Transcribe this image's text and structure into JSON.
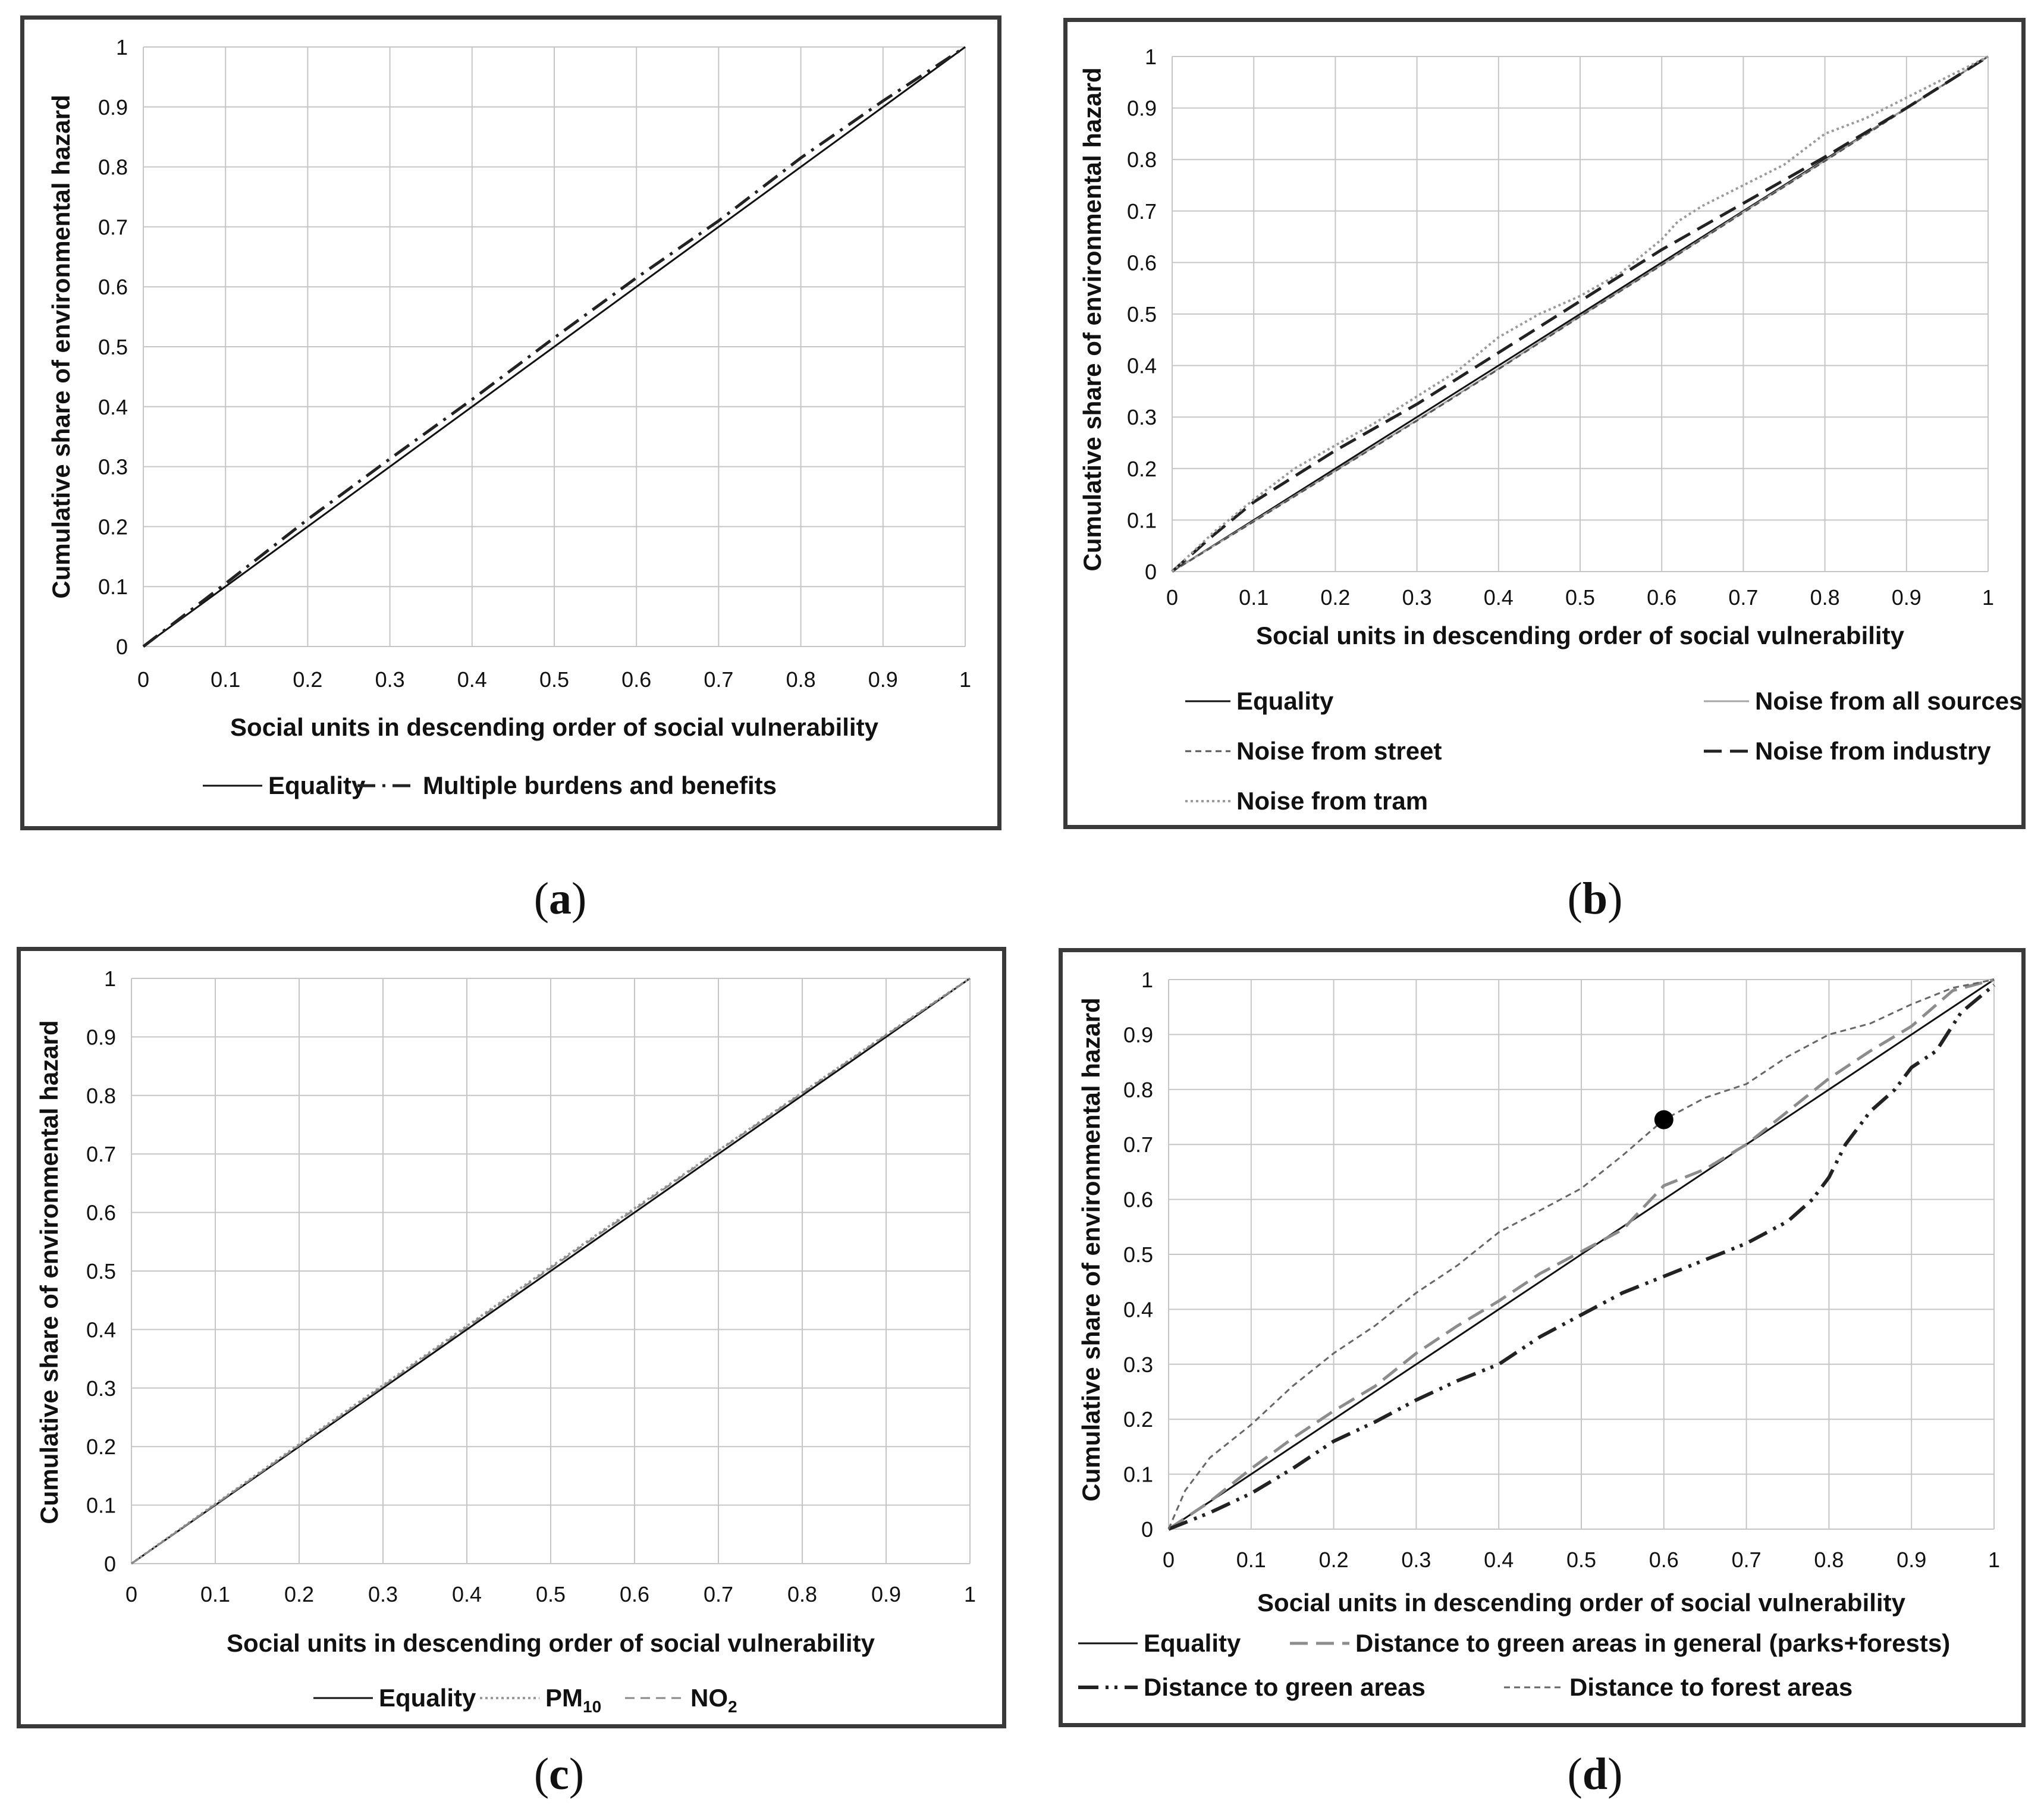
{
  "labels": {
    "a": "a",
    "b": "b",
    "c": "c",
    "d": "d"
  },
  "chart_data": [
    {
      "id": "a",
      "type": "line",
      "xlabel": "Social units in descending order of social vulnerability",
      "ylabel": "Cumulative share of environmental hazard",
      "xlim": [
        0,
        1
      ],
      "ylim": [
        0,
        1
      ],
      "xticks": [
        "0",
        "0.1",
        "0.2",
        "0.3",
        "0.4",
        "0.5",
        "0.6",
        "0.7",
        "0.8",
        "0.9",
        "1"
      ],
      "yticks": [
        "0",
        "0.1",
        "0.2",
        "0.3",
        "0.4",
        "0.5",
        "0.6",
        "0.7",
        "0.8",
        "0.9",
        "1"
      ],
      "grid": true,
      "legend_position": "bottom",
      "series": [
        {
          "name": "Equality",
          "color": "#111111",
          "dash": "solid",
          "x": [
            0,
            1
          ],
          "y": [
            0,
            1
          ]
        },
        {
          "name": "Multiple burdens and benefits",
          "color": "#222222",
          "dash": "dashdot",
          "x": [
            0,
            0.1,
            0.2,
            0.3,
            0.4,
            0.5,
            0.6,
            0.7,
            0.8,
            0.9,
            1
          ],
          "y": [
            0,
            0.105,
            0.212,
            0.313,
            0.412,
            0.515,
            0.615,
            0.71,
            0.815,
            0.91,
            1
          ]
        }
      ]
    },
    {
      "id": "b",
      "type": "line",
      "xlabel": "Social units in descending order of social vulnerability",
      "ylabel": "Cumulative share of environmental hazard",
      "xlim": [
        0,
        1
      ],
      "ylim": [
        0,
        1
      ],
      "xticks": [
        "0",
        "0.1",
        "0.2",
        "0.3",
        "0.4",
        "0.5",
        "0.6",
        "0.7",
        "0.8",
        "0.9",
        "1"
      ],
      "yticks": [
        "0",
        "0.1",
        "0.2",
        "0.3",
        "0.4",
        "0.5",
        "0.6",
        "0.7",
        "0.8",
        "0.9",
        "1"
      ],
      "grid": true,
      "legend_position": "bottom",
      "series": [
        {
          "name": "Equality",
          "color": "#111111",
          "dash": "solid",
          "x": [
            0,
            1
          ],
          "y": [
            0,
            1
          ]
        },
        {
          "name": "Noise from all sources",
          "color": "#a6a6a6",
          "dash": "solid",
          "x": [
            0,
            0.1,
            0.2,
            0.3,
            0.4,
            0.5,
            0.6,
            0.7,
            0.8,
            0.9,
            1
          ],
          "y": [
            0,
            0.098,
            0.196,
            0.294,
            0.394,
            0.496,
            0.596,
            0.698,
            0.798,
            0.9,
            1
          ]
        },
        {
          "name": "Noise from street",
          "color": "#555555",
          "dash": "shortdash",
          "x": [
            0,
            0.1,
            0.2,
            0.3,
            0.4,
            0.5,
            0.6,
            0.7,
            0.8,
            0.9,
            1
          ],
          "y": [
            0,
            0.097,
            0.195,
            0.293,
            0.393,
            0.495,
            0.595,
            0.697,
            0.797,
            0.899,
            1
          ]
        },
        {
          "name": "Noise from industry",
          "color": "#222222",
          "dash": "longdash",
          "x": [
            0,
            0.05,
            0.1,
            0.2,
            0.3,
            0.4,
            0.5,
            0.6,
            0.7,
            0.8,
            0.9,
            1
          ],
          "y": [
            0,
            0.07,
            0.135,
            0.235,
            0.325,
            0.425,
            0.525,
            0.625,
            0.715,
            0.805,
            0.9,
            1
          ]
        },
        {
          "name": "Noise from tram",
          "color": "#9a9a9a",
          "dash": "dot",
          "x": [
            0,
            0.05,
            0.1,
            0.15,
            0.2,
            0.25,
            0.3,
            0.35,
            0.4,
            0.45,
            0.5,
            0.55,
            0.6,
            0.62,
            0.65,
            0.7,
            0.75,
            0.8,
            0.85,
            0.9,
            0.95,
            1
          ],
          "y": [
            0,
            0.075,
            0.14,
            0.2,
            0.245,
            0.29,
            0.34,
            0.39,
            0.455,
            0.5,
            0.535,
            0.58,
            0.645,
            0.68,
            0.71,
            0.75,
            0.79,
            0.85,
            0.88,
            0.92,
            0.96,
            1
          ]
        }
      ]
    },
    {
      "id": "c",
      "type": "line",
      "xlabel": "Social units in descending order of social vulnerability",
      "ylabel": "Cumulative share of environmental hazard",
      "xlim": [
        0,
        1
      ],
      "ylim": [
        0,
        1
      ],
      "xticks": [
        "0",
        "0.1",
        "0.2",
        "0.3",
        "0.4",
        "0.5",
        "0.6",
        "0.7",
        "0.8",
        "0.9",
        "1"
      ],
      "yticks": [
        "0",
        "0.1",
        "0.2",
        "0.3",
        "0.4",
        "0.5",
        "0.6",
        "0.7",
        "0.8",
        "0.9",
        "1"
      ],
      "grid": true,
      "legend_position": "bottom",
      "series": [
        {
          "name": "Equality",
          "color": "#111111",
          "dash": "solid",
          "x": [
            0,
            1
          ],
          "y": [
            0,
            1
          ]
        },
        {
          "name": "PM10",
          "label_base": "PM",
          "label_sub": "10",
          "color": "#9a9a9a",
          "dash": "dot",
          "x": [
            0,
            0.1,
            0.2,
            0.3,
            0.4,
            0.5,
            0.6,
            0.7,
            0.8,
            0.9,
            1
          ],
          "y": [
            0,
            0.102,
            0.204,
            0.305,
            0.406,
            0.507,
            0.607,
            0.706,
            0.805,
            0.904,
            1
          ]
        },
        {
          "name": "NO2",
          "label_base": "NO",
          "label_sub": "2",
          "color": "#888888",
          "dash": "dash",
          "x": [
            0,
            0.1,
            0.2,
            0.3,
            0.4,
            0.5,
            0.6,
            0.7,
            0.8,
            0.9,
            1
          ],
          "y": [
            0,
            0.101,
            0.202,
            0.303,
            0.404,
            0.505,
            0.605,
            0.705,
            0.804,
            0.903,
            1
          ]
        }
      ]
    },
    {
      "id": "d",
      "type": "line",
      "xlabel": "Social units in descending order of social vulnerability",
      "ylabel": "Cumulative share of environmental hazard",
      "xlim": [
        0,
        1
      ],
      "ylim": [
        0,
        1
      ],
      "xticks": [
        "0",
        "0.1",
        "0.2",
        "0.3",
        "0.4",
        "0.5",
        "0.6",
        "0.7",
        "0.8",
        "0.9",
        "1"
      ],
      "yticks": [
        "0",
        "0.1",
        "0.2",
        "0.3",
        "0.4",
        "0.5",
        "0.6",
        "0.7",
        "0.8",
        "0.9",
        "1"
      ],
      "grid": true,
      "legend_position": "bottom",
      "marker": {
        "x": 0.6,
        "y": 0.745
      },
      "series": [
        {
          "name": "Equality",
          "color": "#111111",
          "dash": "solid",
          "x": [
            0,
            1
          ],
          "y": [
            0,
            1
          ]
        },
        {
          "name": "Distance to green areas in general (parks+forests)",
          "color": "#8c8c8c",
          "dash": "longdash",
          "x": [
            0,
            0.05,
            0.1,
            0.15,
            0.2,
            0.25,
            0.3,
            0.35,
            0.4,
            0.45,
            0.5,
            0.55,
            0.6,
            0.65,
            0.7,
            0.75,
            0.8,
            0.85,
            0.9,
            0.95,
            1
          ],
          "y": [
            0,
            0.05,
            0.11,
            0.165,
            0.215,
            0.26,
            0.32,
            0.37,
            0.415,
            0.465,
            0.505,
            0.545,
            0.625,
            0.655,
            0.7,
            0.76,
            0.82,
            0.87,
            0.915,
            0.98,
            1
          ]
        },
        {
          "name": "Distance to green areas",
          "color": "#222222",
          "dash": "dashdotdot",
          "x": [
            0,
            0.05,
            0.1,
            0.15,
            0.2,
            0.25,
            0.3,
            0.35,
            0.4,
            0.45,
            0.5,
            0.55,
            0.6,
            0.65,
            0.7,
            0.75,
            0.78,
            0.8,
            0.82,
            0.85,
            0.88,
            0.9,
            0.93,
            0.96,
            1
          ],
          "y": [
            0,
            0.03,
            0.065,
            0.11,
            0.16,
            0.195,
            0.235,
            0.27,
            0.3,
            0.35,
            0.39,
            0.43,
            0.46,
            0.49,
            0.52,
            0.56,
            0.6,
            0.64,
            0.7,
            0.76,
            0.8,
            0.84,
            0.87,
            0.94,
            0.99
          ]
        },
        {
          "name": "Distance to forest areas",
          "color": "#666666",
          "dash": "shortdash",
          "x": [
            0,
            0.02,
            0.05,
            0.1,
            0.15,
            0.2,
            0.25,
            0.3,
            0.35,
            0.4,
            0.45,
            0.5,
            0.55,
            0.6,
            0.65,
            0.7,
            0.75,
            0.8,
            0.85,
            0.9,
            0.95,
            1
          ],
          "y": [
            0,
            0.07,
            0.13,
            0.19,
            0.26,
            0.32,
            0.37,
            0.43,
            0.48,
            0.54,
            0.58,
            0.62,
            0.68,
            0.745,
            0.785,
            0.81,
            0.86,
            0.9,
            0.92,
            0.955,
            0.985,
            1
          ]
        }
      ]
    }
  ]
}
